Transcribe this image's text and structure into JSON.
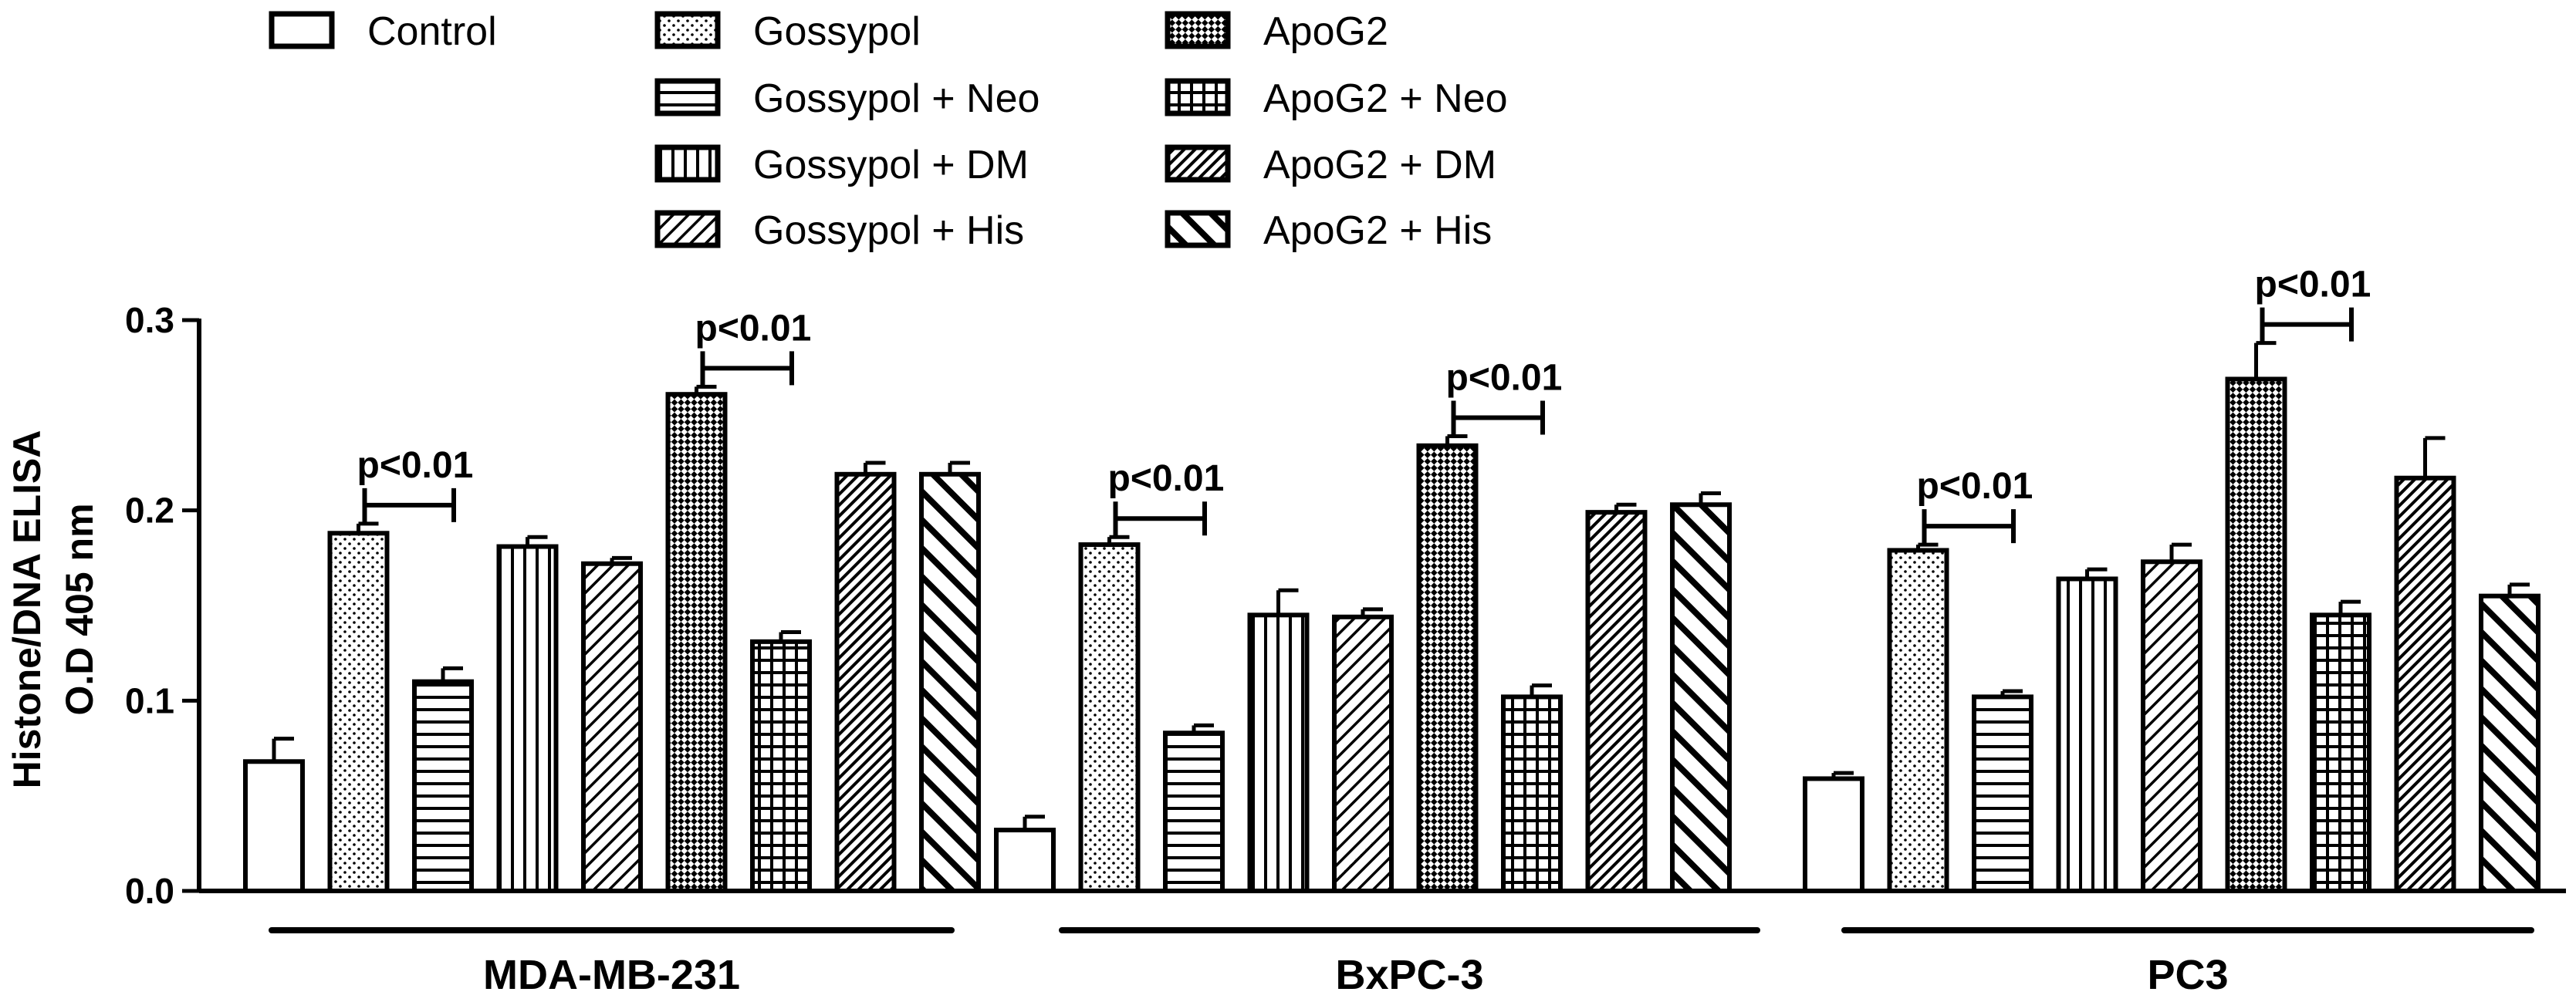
{
  "chart_data": {
    "type": "bar",
    "title": "",
    "xlabel": "",
    "ylabel_lines": [
      "Histone/DNA ELISA",
      "O.D 405 nm"
    ],
    "ylim": [
      0,
      0.3
    ],
    "yticks": [
      "0.0",
      "0.1",
      "0.2",
      "0.3"
    ],
    "categories": [
      "MDA-MB-231",
      "BxPC-3",
      "PC3"
    ],
    "series": [
      {
        "name": "Control",
        "pattern": "blank",
        "values": [
          0.068,
          0.032,
          0.059
        ],
        "errors": [
          0.012,
          0.007,
          0.003
        ]
      },
      {
        "name": "Gossypol",
        "pattern": "dots",
        "values": [
          0.188,
          0.182,
          0.179
        ],
        "errors": [
          0.005,
          0.004,
          0.003
        ]
      },
      {
        "name": "Gossypol + Neo",
        "pattern": "hlines",
        "values": [
          0.11,
          0.083,
          0.102
        ],
        "errors": [
          0.007,
          0.004,
          0.003
        ]
      },
      {
        "name": "Gossypol + DM",
        "pattern": "vlines",
        "values": [
          0.181,
          0.145,
          0.164
        ],
        "errors": [
          0.005,
          0.013,
          0.005
        ]
      },
      {
        "name": "Gossypol + His",
        "pattern": "diag-fine",
        "values": [
          0.172,
          0.144,
          0.173
        ],
        "errors": [
          0.003,
          0.004,
          0.009
        ]
      },
      {
        "name": "ApoG2",
        "pattern": "dense-check",
        "values": [
          0.261,
          0.234,
          0.269
        ],
        "errors": [
          0.004,
          0.005,
          0.019
        ]
      },
      {
        "name": "ApoG2 + Neo",
        "pattern": "grid",
        "values": [
          0.131,
          0.102,
          0.145
        ],
        "errors": [
          0.005,
          0.006,
          0.007
        ]
      },
      {
        "name": "ApoG2 + DM",
        "pattern": "diag-dense",
        "values": [
          0.219,
          0.199,
          0.217
        ],
        "errors": [
          0.006,
          0.004,
          0.021
        ]
      },
      {
        "name": "ApoG2 + His",
        "pattern": "diag-back",
        "values": [
          0.219,
          0.203,
          0.155
        ],
        "errors": [
          0.006,
          0.006,
          0.006
        ]
      }
    ],
    "legend_columns": [
      [
        "Control"
      ],
      [
        "Gossypol",
        "Gossypol + Neo",
        "Gossypol + DM",
        "Gossypol + His"
      ],
      [
        "ApoG2",
        "ApoG2 + Neo",
        "ApoG2 + DM",
        "ApoG2 + His"
      ]
    ],
    "legend_position": "top",
    "annotations": [
      {
        "text": "p<0.01",
        "group": 0,
        "from_series": 1,
        "to_series": 2
      },
      {
        "text": "p<0.01",
        "group": 0,
        "from_series": 5,
        "to_series": 6
      },
      {
        "text": "p<0.01",
        "group": 1,
        "from_series": 1,
        "to_series": 2
      },
      {
        "text": "p<0.01",
        "group": 1,
        "from_series": 5,
        "to_series": 6
      },
      {
        "text": "p<0.01",
        "group": 2,
        "from_series": 1,
        "to_series": 2
      },
      {
        "text": "p<0.01",
        "group": 2,
        "from_series": 5,
        "to_series": 6
      }
    ]
  }
}
